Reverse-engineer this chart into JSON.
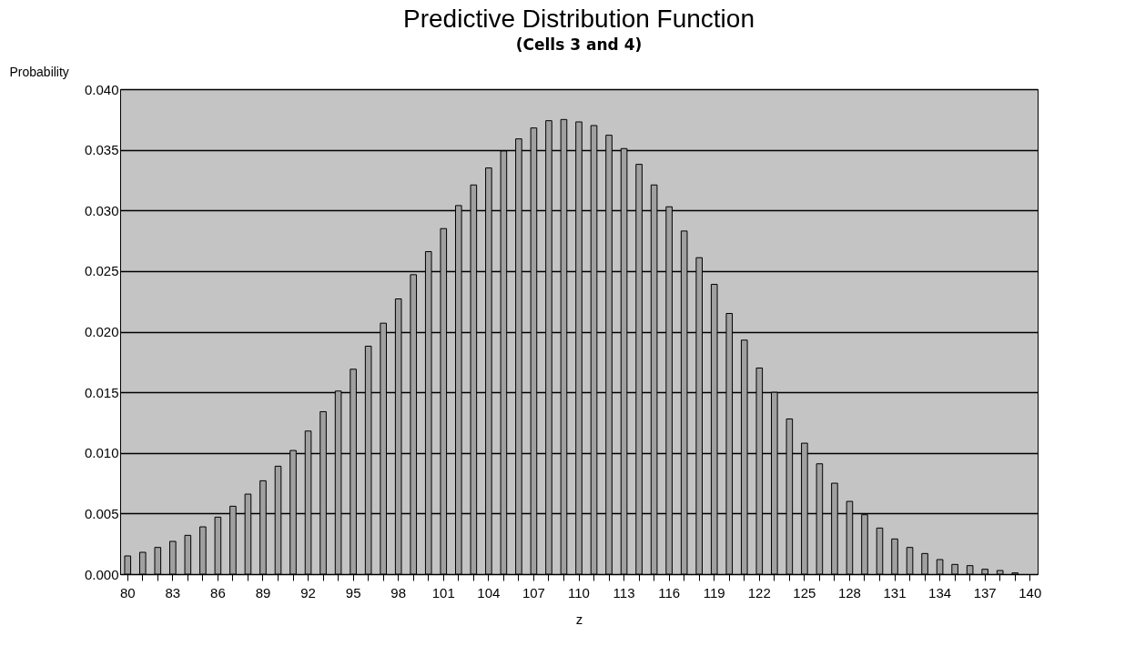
{
  "chart_data": {
    "type": "bar",
    "title": "Predictive Distribution Function",
    "subtitle": "(Cells 3 and 4)",
    "xlabel": "z",
    "ylabel": "Probability",
    "categories": [
      "80",
      null,
      null,
      "83",
      null,
      null,
      "86",
      null,
      null,
      "89",
      null,
      null,
      "92",
      null,
      null,
      "95",
      null,
      null,
      "98",
      null,
      null,
      "101",
      null,
      null,
      "104",
      null,
      null,
      "107",
      null,
      null,
      "110",
      null,
      null,
      "113",
      null,
      null,
      "116",
      null,
      null,
      "119",
      null,
      null,
      "122",
      null,
      null,
      "125",
      null,
      null,
      "128",
      null,
      null,
      "131",
      null,
      null,
      "134",
      null,
      null,
      "137",
      null,
      null,
      "140"
    ],
    "values": [
      0.0015,
      0.0018,
      0.0022,
      0.0027,
      0.0032,
      0.0039,
      0.0047,
      0.0056,
      0.0066,
      0.0077,
      0.0089,
      0.0102,
      0.0118,
      0.0134,
      0.0151,
      0.0169,
      0.0188,
      0.0207,
      0.0227,
      0.0247,
      0.0266,
      0.0285,
      0.0304,
      0.0321,
      0.0335,
      0.0349,
      0.0359,
      0.0368,
      0.0374,
      0.0375,
      0.0373,
      0.037,
      0.0362,
      0.0351,
      0.0338,
      0.0321,
      0.0303,
      0.0283,
      0.0261,
      0.0239,
      0.0215,
      0.0193,
      0.017,
      0.015,
      0.0128,
      0.0108,
      0.0091,
      0.0075,
      0.006,
      0.0049,
      0.0038,
      0.0029,
      0.0022,
      0.0017,
      0.0012,
      0.0008,
      0.0007,
      0.0004,
      0.0003,
      0.0001,
      null
    ],
    "color": "#a0a0a0",
    "ylim": [
      0,
      0.04
    ],
    "yticks": [
      {
        "value": 0,
        "label": "0.000"
      },
      {
        "value": 0.005,
        "label": "0.005"
      },
      {
        "value": 0.01,
        "label": "0.010"
      },
      {
        "value": 0.015,
        "label": "0.015"
      },
      {
        "value": 0.02,
        "label": "0.020"
      },
      {
        "value": 0.025,
        "label": "0.025"
      },
      {
        "value": 0.03,
        "label": "0.030"
      },
      {
        "value": 0.035,
        "label": "0.035"
      },
      {
        "value": 0.04,
        "label": "0.040"
      }
    ],
    "grid": "y"
  }
}
